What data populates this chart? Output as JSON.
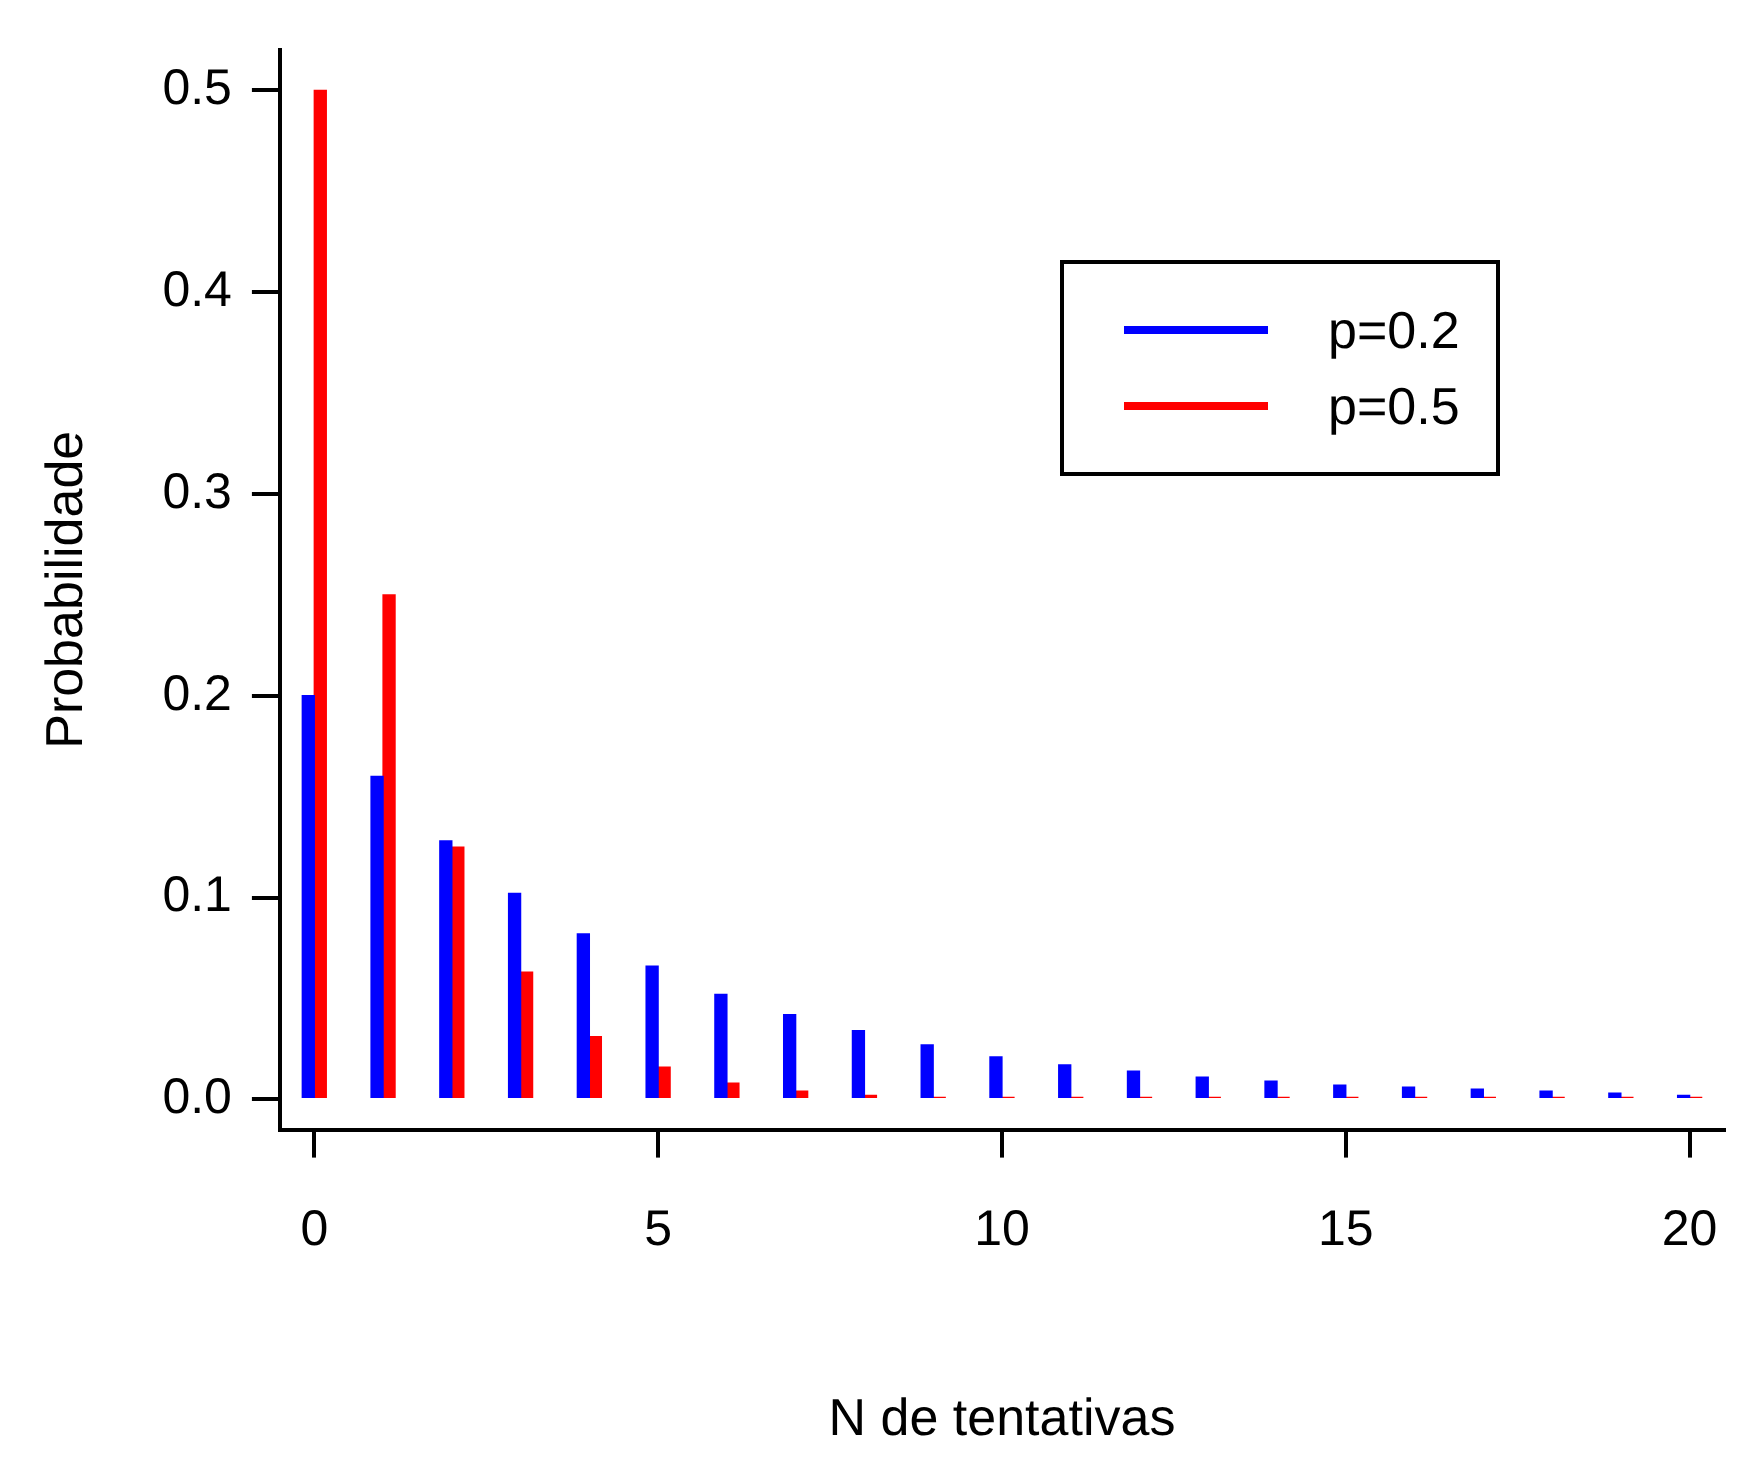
{
  "chart_data": {
    "type": "bar",
    "xlabel": "N de tentativas",
    "ylabel": "Probabilidade",
    "categories": [
      "0",
      null,
      null,
      null,
      null,
      "5",
      null,
      null,
      null,
      null,
      "10",
      null,
      null,
      null,
      null,
      "15",
      null,
      null,
      null,
      null,
      "20"
    ],
    "series": [
      {
        "name": "p=0.2",
        "color": "#0000ff",
        "values": [
          0.2,
          0.16,
          0.128,
          0.102,
          0.082,
          0.066,
          0.052,
          0.042,
          0.034,
          0.027,
          0.021,
          0.017,
          0.014,
          0.011,
          0.009,
          0.007,
          0.006,
          0.005,
          0.004,
          0.003,
          0.002
        ]
      },
      {
        "name": "p=0.5",
        "color": "#ff0000",
        "values": [
          0.5,
          0.25,
          0.125,
          0.063,
          0.031,
          0.016,
          0.008,
          0.004,
          0.002,
          0.001,
          0.001,
          0.001,
          0.001,
          0.001,
          0.001,
          0.001,
          0.001,
          0.001,
          0.001,
          0.001,
          0.001
        ]
      }
    ],
    "ylim": [
      -0.015,
      0.52
    ],
    "yticks": [
      {
        "value": 0,
        "label": "0.0"
      },
      0.1,
      0.2,
      0.3,
      0.4,
      0.5
    ],
    "grid": false,
    "legend": "top right"
  }
}
